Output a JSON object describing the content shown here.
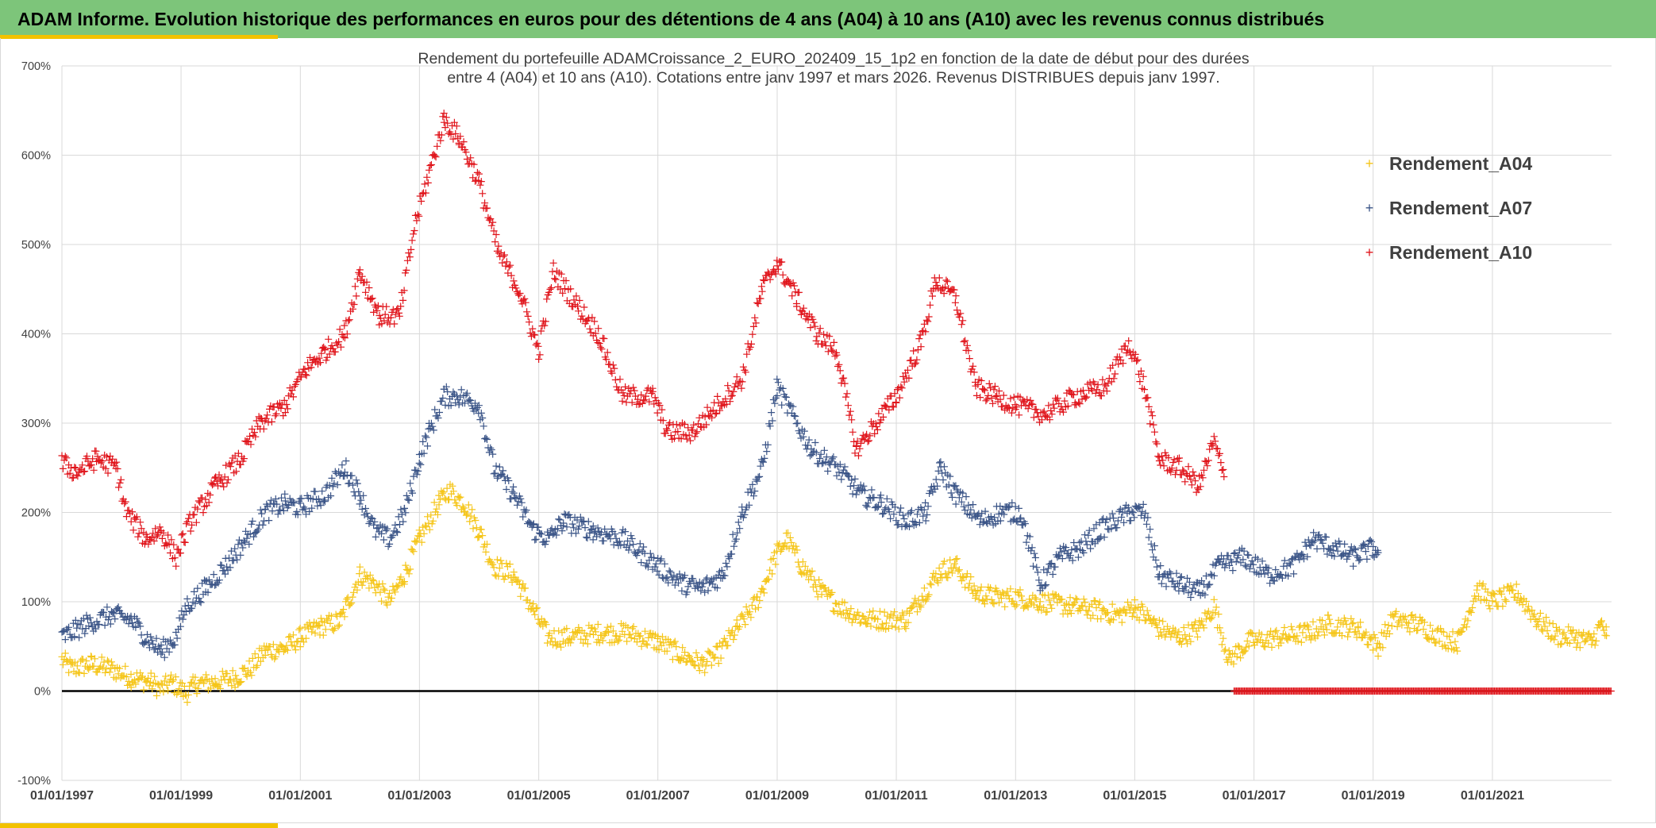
{
  "banner": {
    "title": "ADAM Informe. Evolution historique des performances en euros pour des détentions de 4 ans (A04) à 10 ans (A10) avec les revenus connus distribués"
  },
  "colors": {
    "banner_bg": "#7dc57a",
    "accent": "#f2c200",
    "A04": "#f5c518",
    "A07": "#3a5487",
    "A10": "#e0141b"
  },
  "chart_data": {
    "type": "scatter",
    "title_line1": "Rendement du portefeuille ADAMCroissance_2_EURO_202409_15_1p2  en fonction de la date de début pour des durées",
    "title_line2": "entre 4 (A04) et 10 ans (A10). Cotations entre janv 1997 et mars 2026. Revenus DISTRIBUES depuis janv 1997.",
    "marker": "+",
    "legend_position": "right",
    "grid": true,
    "xlabel": "",
    "ylabel": "",
    "xlim": [
      "1997-01-01",
      "2023-01-01"
    ],
    "ylim": [
      -1,
      7
    ],
    "y_ticks": [
      -1,
      0,
      1,
      2,
      3,
      4,
      5,
      6,
      7
    ],
    "y_tick_labels": [
      "-100%",
      "0%",
      "100%",
      "200%",
      "300%",
      "400%",
      "500%",
      "600%",
      "700%"
    ],
    "x_ticks": [
      "1997-01-01",
      "1999-01-01",
      "2001-01-01",
      "2003-01-01",
      "2005-01-01",
      "2007-01-01",
      "2009-01-01",
      "2011-01-01",
      "2013-01-01",
      "2015-01-01",
      "2017-01-01",
      "2019-01-01",
      "2021-01-01"
    ],
    "x_tick_labels": [
      "01/01/1997",
      "01/01/1999",
      "01/01/2001",
      "01/01/2003",
      "01/01/2005",
      "01/01/2007",
      "01/01/2009",
      "01/01/2011",
      "01/01/2013",
      "01/01/2015",
      "01/01/2017",
      "01/01/2019",
      "01/01/2021"
    ],
    "series": [
      {
        "name": "Rendement_A04",
        "color": "#f5c518",
        "points": [
          [
            "1997-01-01",
            0.35
          ],
          [
            "1997-03-01",
            0.25
          ],
          [
            "1997-07-01",
            0.3
          ],
          [
            "1997-11-01",
            0.25
          ],
          [
            "1998-03-01",
            0.15
          ],
          [
            "1998-07-01",
            0.1
          ],
          [
            "1998-09-01",
            0.02
          ],
          [
            "1998-11-01",
            0.1
          ],
          [
            "1999-01-01",
            0.02
          ],
          [
            "1999-02-01",
            -0.03
          ],
          [
            "1999-04-01",
            0.08
          ],
          [
            "1999-08-01",
            0.1
          ],
          [
            "1999-12-01",
            0.15
          ],
          [
            "2000-03-01",
            0.25
          ],
          [
            "2000-06-01",
            0.45
          ],
          [
            "2000-10-01",
            0.48
          ],
          [
            "2001-01-01",
            0.6
          ],
          [
            "2001-05-01",
            0.72
          ],
          [
            "2001-09-01",
            0.78
          ],
          [
            "2002-01-01",
            1.3
          ],
          [
            "2002-04-01",
            1.2
          ],
          [
            "2002-07-01",
            1.0
          ],
          [
            "2002-10-01",
            1.3
          ],
          [
            "2003-01-01",
            1.7
          ],
          [
            "2003-05-01",
            2.1
          ],
          [
            "2003-07-01",
            2.25
          ],
          [
            "2003-10-01",
            2.1
          ],
          [
            "2004-01-01",
            1.8
          ],
          [
            "2004-04-01",
            1.4
          ],
          [
            "2004-08-01",
            1.3
          ],
          [
            "2004-12-01",
            0.9
          ],
          [
            "2005-03-01",
            0.6
          ],
          [
            "2005-07-01",
            0.6
          ],
          [
            "2006-01-01",
            0.65
          ],
          [
            "2006-07-01",
            0.65
          ],
          [
            "2007-01-01",
            0.55
          ],
          [
            "2007-06-01",
            0.4
          ],
          [
            "2007-10-01",
            0.3
          ],
          [
            "2008-01-01",
            0.4
          ],
          [
            "2008-05-01",
            0.7
          ],
          [
            "2008-09-01",
            1.0
          ],
          [
            "2009-01-01",
            1.55
          ],
          [
            "2009-03-01",
            1.7
          ],
          [
            "2009-06-01",
            1.4
          ],
          [
            "2009-10-01",
            1.1
          ],
          [
            "2010-03-01",
            0.9
          ],
          [
            "2010-07-01",
            0.8
          ],
          [
            "2010-11-01",
            0.8
          ],
          [
            "2011-03-01",
            0.8
          ],
          [
            "2011-06-01",
            1.05
          ],
          [
            "2011-10-01",
            1.35
          ],
          [
            "2012-01-01",
            1.4
          ],
          [
            "2012-05-01",
            1.1
          ],
          [
            "2012-09-01",
            1.05
          ],
          [
            "2013-01-01",
            1.05
          ],
          [
            "2013-06-01",
            1.0
          ],
          [
            "2013-12-01",
            0.95
          ],
          [
            "2014-06-01",
            0.9
          ],
          [
            "2014-10-01",
            0.85
          ],
          [
            "2015-01-01",
            0.95
          ],
          [
            "2015-06-01",
            0.7
          ],
          [
            "2015-10-01",
            0.6
          ],
          [
            "2016-02-01",
            0.7
          ],
          [
            "2016-05-01",
            0.95
          ],
          [
            "2016-08-01",
            0.35
          ],
          [
            "2016-12-01",
            0.55
          ],
          [
            "2017-06-01",
            0.6
          ],
          [
            "2017-12-01",
            0.65
          ],
          [
            "2018-04-01",
            0.75
          ],
          [
            "2018-10-01",
            0.7
          ],
          [
            "2019-02-01",
            0.5
          ],
          [
            "2019-05-01",
            0.8
          ],
          [
            "2019-10-01",
            0.75
          ],
          [
            "2020-03-01",
            0.6
          ],
          [
            "2020-06-01",
            0.55
          ],
          [
            "2020-10-01",
            1.15
          ],
          [
            "2021-01-01",
            1.0
          ],
          [
            "2021-06-01",
            1.1
          ],
          [
            "2021-10-01",
            0.8
          ],
          [
            "2022-02-01",
            0.62
          ],
          [
            "2022-06-01",
            0.6
          ],
          [
            "2022-09-01",
            0.55
          ],
          [
            "2022-11-01",
            0.75
          ],
          [
            "2022-12-01",
            0.62
          ]
        ]
      },
      {
        "name": "Rendement_A07",
        "color": "#3a5487",
        "points": [
          [
            "1997-01-01",
            0.6
          ],
          [
            "1997-06-01",
            0.75
          ],
          [
            "1997-11-01",
            0.85
          ],
          [
            "1998-03-01",
            0.8
          ],
          [
            "1998-06-01",
            0.6
          ],
          [
            "1998-09-01",
            0.45
          ],
          [
            "1998-12-01",
            0.6
          ],
          [
            "1999-02-01",
            0.95
          ],
          [
            "1999-06-01",
            1.15
          ],
          [
            "1999-10-01",
            1.4
          ],
          [
            "2000-02-01",
            1.7
          ],
          [
            "2000-06-01",
            2.0
          ],
          [
            "2000-10-01",
            2.1
          ],
          [
            "2001-01-01",
            2.05
          ],
          [
            "2001-06-01",
            2.2
          ],
          [
            "2001-10-01",
            2.5
          ],
          [
            "2002-01-01",
            2.2
          ],
          [
            "2002-04-01",
            1.8
          ],
          [
            "2002-07-01",
            1.7
          ],
          [
            "2002-10-01",
            2.0
          ],
          [
            "2003-01-01",
            2.6
          ],
          [
            "2003-03-01",
            2.9
          ],
          [
            "2003-06-01",
            3.3
          ],
          [
            "2003-09-01",
            3.3
          ],
          [
            "2004-01-01",
            3.2
          ],
          [
            "2004-04-01",
            2.5
          ],
          [
            "2004-08-01",
            2.2
          ],
          [
            "2004-12-01",
            1.8
          ],
          [
            "2005-03-01",
            1.7
          ],
          [
            "2005-06-01",
            1.9
          ],
          [
            "2005-12-01",
            1.8
          ],
          [
            "2006-06-01",
            1.7
          ],
          [
            "2007-01-01",
            1.4
          ],
          [
            "2007-06-01",
            1.2
          ],
          [
            "2007-10-01",
            1.15
          ],
          [
            "2008-02-01",
            1.3
          ],
          [
            "2008-06-01",
            2.0
          ],
          [
            "2008-10-01",
            2.5
          ],
          [
            "2009-01-01",
            3.4
          ],
          [
            "2009-04-01",
            3.1
          ],
          [
            "2009-08-01",
            2.7
          ],
          [
            "2010-01-01",
            2.5
          ],
          [
            "2010-06-01",
            2.2
          ],
          [
            "2010-10-01",
            2.1
          ],
          [
            "2011-03-01",
            1.9
          ],
          [
            "2011-07-01",
            2.0
          ],
          [
            "2011-10-01",
            2.5
          ],
          [
            "2012-01-01",
            2.2
          ],
          [
            "2012-06-01",
            1.9
          ],
          [
            "2012-10-01",
            2.0
          ],
          [
            "2013-02-01",
            2.0
          ],
          [
            "2013-06-01",
            1.2
          ],
          [
            "2013-10-01",
            1.5
          ],
          [
            "2014-02-01",
            1.6
          ],
          [
            "2014-06-01",
            1.8
          ],
          [
            "2014-12-01",
            2.0
          ],
          [
            "2015-03-01",
            2.0
          ],
          [
            "2015-06-01",
            1.3
          ],
          [
            "2015-10-01",
            1.2
          ],
          [
            "2016-02-01",
            1.1
          ],
          [
            "2016-06-01",
            1.4
          ],
          [
            "2016-11-01",
            1.5
          ],
          [
            "2017-04-01",
            1.3
          ],
          [
            "2017-09-01",
            1.4
          ],
          [
            "2018-01-01",
            1.7
          ],
          [
            "2018-05-01",
            1.6
          ],
          [
            "2018-09-01",
            1.5
          ],
          [
            "2019-01-01",
            1.6
          ],
          [
            "2019-02-01",
            1.55
          ]
        ]
      },
      {
        "name": "Rendement_A10",
        "color": "#e0141b",
        "points": [
          [
            "1997-01-01",
            2.55
          ],
          [
            "1997-04-01",
            2.45
          ],
          [
            "1997-08-01",
            2.6
          ],
          [
            "1997-12-01",
            2.5
          ],
          [
            "1998-02-01",
            2.0
          ],
          [
            "1998-06-01",
            1.7
          ],
          [
            "1998-09-01",
            1.8
          ],
          [
            "1998-12-01",
            1.5
          ],
          [
            "1999-03-01",
            1.9
          ],
          [
            "1999-08-01",
            2.3
          ],
          [
            "2000-01-01",
            2.6
          ],
          [
            "2000-05-01",
            3.0
          ],
          [
            "2000-10-01",
            3.2
          ],
          [
            "2001-02-01",
            3.6
          ],
          [
            "2001-06-01",
            3.8
          ],
          [
            "2001-10-01",
            4.0
          ],
          [
            "2002-01-01",
            4.7
          ],
          [
            "2002-05-01",
            4.2
          ],
          [
            "2002-09-01",
            4.2
          ],
          [
            "2002-12-01",
            5.2
          ],
          [
            "2003-03-01",
            5.8
          ],
          [
            "2003-06-01",
            6.4
          ],
          [
            "2003-09-01",
            6.2
          ],
          [
            "2004-01-01",
            5.7
          ],
          [
            "2004-05-01",
            4.9
          ],
          [
            "2004-09-01",
            4.5
          ],
          [
            "2005-01-01",
            3.8
          ],
          [
            "2005-04-01",
            4.7
          ],
          [
            "2005-09-01",
            4.3
          ],
          [
            "2006-01-01",
            4.0
          ],
          [
            "2006-06-01",
            3.3
          ],
          [
            "2006-12-01",
            3.3
          ],
          [
            "2007-03-01",
            2.9
          ],
          [
            "2007-08-01",
            2.9
          ],
          [
            "2008-01-01",
            3.2
          ],
          [
            "2008-06-01",
            3.5
          ],
          [
            "2008-10-01",
            4.5
          ],
          [
            "2009-01-01",
            4.8
          ],
          [
            "2009-05-01",
            4.4
          ],
          [
            "2009-09-01",
            4.0
          ],
          [
            "2010-01-01",
            3.8
          ],
          [
            "2010-05-01",
            2.7
          ],
          [
            "2010-09-01",
            3.0
          ],
          [
            "2011-01-01",
            3.3
          ],
          [
            "2011-06-01",
            3.9
          ],
          [
            "2011-09-01",
            4.6
          ],
          [
            "2012-01-01",
            4.4
          ],
          [
            "2012-05-01",
            3.4
          ],
          [
            "2012-09-01",
            3.3
          ],
          [
            "2013-01-01",
            3.2
          ],
          [
            "2013-07-01",
            3.1
          ],
          [
            "2014-01-01",
            3.3
          ],
          [
            "2014-07-01",
            3.4
          ],
          [
            "2014-12-01",
            3.9
          ],
          [
            "2015-03-01",
            3.4
          ],
          [
            "2015-06-01",
            2.6
          ],
          [
            "2015-10-01",
            2.5
          ],
          [
            "2016-02-01",
            2.3
          ],
          [
            "2016-05-01",
            2.8
          ],
          [
            "2016-07-01",
            2.4
          ]
        ]
      }
    ],
    "zero_series": {
      "color": "#e0141b",
      "from": "2016-09-01",
      "to": "2023-01-01",
      "value": 0
    }
  }
}
